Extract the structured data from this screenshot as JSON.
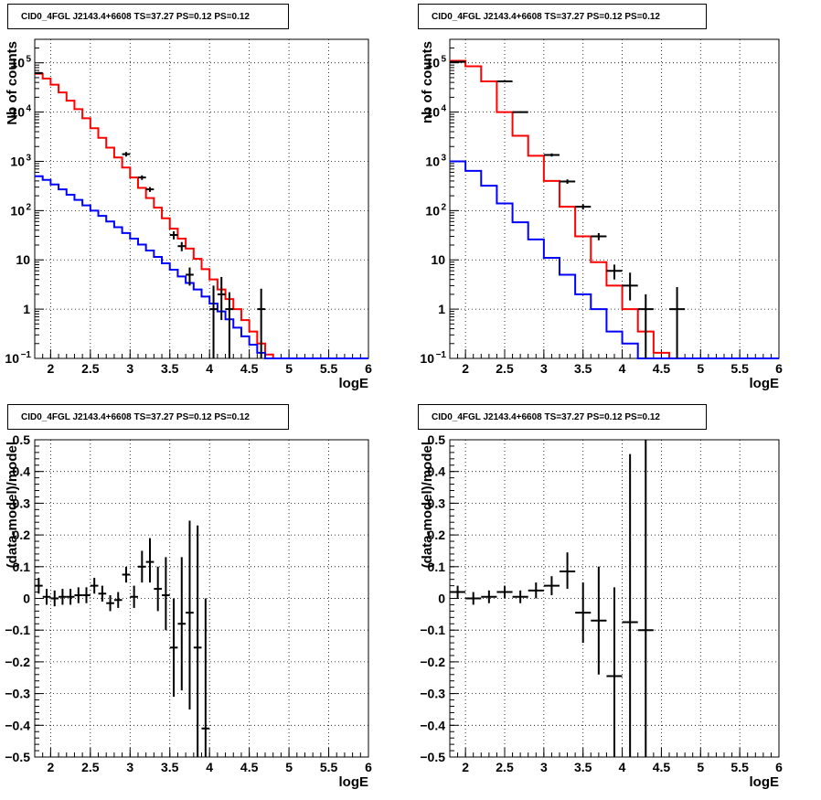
{
  "chart_data": [
    {
      "type": "line",
      "title": "CID0_4FGL J2143.4+6608 TS=37.27 PS=0.12 PS=0.12",
      "xlabel": "logE",
      "ylabel": "Nb of counts",
      "yscale": "log",
      "xlim": [
        1.8,
        6
      ],
      "ylim": [
        0.1,
        300000
      ],
      "grid": true,
      "xticks": [
        "2",
        "2.5",
        "3",
        "3.5",
        "4",
        "4.5",
        "5",
        "5.5",
        "6"
      ],
      "yticks": [
        {
          "value": 0.1,
          "label": "10",
          "sup": "−1"
        },
        {
          "value": 1,
          "label": "1",
          "sup": ""
        },
        {
          "value": 10,
          "label": "10",
          "sup": ""
        },
        {
          "value": 100,
          "label": "10",
          "sup": "2"
        },
        {
          "value": 1000,
          "label": "10",
          "sup": "3"
        },
        {
          "value": 10000,
          "label": "10",
          "sup": "4"
        },
        {
          "value": 100000,
          "label": "10",
          "sup": "5"
        }
      ],
      "bin_edges": [
        1.8,
        1.9,
        2.0,
        2.1,
        2.2,
        2.3,
        2.4,
        2.5,
        2.6,
        2.7,
        2.8,
        2.9,
        3.0,
        3.1,
        3.2,
        3.3,
        3.4,
        3.5,
        3.6,
        3.7,
        3.8,
        3.9,
        4.0,
        4.1,
        4.2,
        4.3,
        4.4,
        4.5,
        4.6,
        4.7,
        4.8,
        4.9,
        5.0,
        5.1,
        5.2,
        5.3,
        5.4,
        5.5,
        5.6,
        5.7,
        5.8,
        5.9,
        6.0
      ],
      "series": [
        {
          "color": "#ff0000",
          "values": [
            60000,
            48000,
            36000,
            25000,
            17000,
            11500,
            7500,
            4700,
            3000,
            1900,
            1200,
            750,
            470,
            290,
            180,
            115,
            70,
            43,
            27,
            17,
            10.5,
            6.5,
            4,
            2.5,
            1.6,
            1,
            0.6,
            0.35,
            0.2,
            0.12,
            0.1,
            0.1,
            0.1,
            0.1,
            0.1,
            0.1,
            0.1,
            0.1,
            0.1,
            0.1,
            0.1,
            0.1
          ]
        },
        {
          "color": "#0000ff",
          "values": [
            500,
            420,
            340,
            270,
            210,
            165,
            128,
            100,
            78,
            60,
            46,
            35,
            27,
            20.5,
            15.5,
            11.5,
            8.5,
            6.3,
            4.6,
            3.4,
            2.5,
            1.8,
            1.3,
            0.9,
            0.62,
            0.42,
            0.28,
            0.19,
            0.13,
            0.1,
            0.1,
            0.1,
            0.1,
            0.1,
            0.1,
            0.1,
            0.1,
            0.1,
            0.1,
            0.1,
            0.1,
            0.1
          ]
        }
      ],
      "points": [
        {
          "x": 1.85,
          "y": 62000,
          "xerr": 0.05,
          "ylo": 59000,
          "yhi": 65000
        },
        {
          "x": 2.95,
          "y": 1400,
          "xerr": 0.05,
          "ylo": 1250,
          "yhi": 1550
        },
        {
          "x": 3.15,
          "y": 470,
          "xerr": 0.05,
          "ylo": 420,
          "yhi": 520
        },
        {
          "x": 3.25,
          "y": 270,
          "xerr": 0.05,
          "ylo": 240,
          "yhi": 300
        },
        {
          "x": 3.55,
          "y": 32,
          "xerr": 0.05,
          "ylo": 26,
          "yhi": 38
        },
        {
          "x": 3.65,
          "y": 19,
          "xerr": 0.05,
          "ylo": 15,
          "yhi": 23
        },
        {
          "x": 3.75,
          "y": 5,
          "xerr": 0.05,
          "ylo": 3,
          "yhi": 7
        },
        {
          "x": 4.05,
          "y": 1,
          "xerr": 0.05,
          "ylo": 0.1,
          "yhi": 3
        },
        {
          "x": 4.15,
          "y": 2,
          "xerr": 0.05,
          "ylo": 0.6,
          "yhi": 4.5
        },
        {
          "x": 4.25,
          "y": 1,
          "xerr": 0.05,
          "ylo": 0.1,
          "yhi": 2.2
        },
        {
          "x": 4.65,
          "y": 1,
          "xerr": 0.05,
          "ylo": 0.1,
          "yhi": 2.6
        }
      ]
    },
    {
      "type": "line",
      "title": "CID0_4FGL J2143.4+6608 TS=37.27 PS=0.12 PS=0.12",
      "xlabel": "logE",
      "ylabel": "nb of counts",
      "yscale": "log",
      "xlim": [
        1.8,
        6
      ],
      "ylim": [
        0.1,
        300000
      ],
      "grid": true,
      "xticks": [
        "2",
        "2.5",
        "3",
        "3.5",
        "4",
        "4.5",
        "5",
        "5.5",
        "6"
      ],
      "yticks": [
        {
          "value": 0.1,
          "label": "10",
          "sup": "−1"
        },
        {
          "value": 1,
          "label": "1",
          "sup": ""
        },
        {
          "value": 10,
          "label": "10",
          "sup": ""
        },
        {
          "value": 100,
          "label": "10",
          "sup": "2"
        },
        {
          "value": 1000,
          "label": "10",
          "sup": "3"
        },
        {
          "value": 10000,
          "label": "10",
          "sup": "4"
        },
        {
          "value": 100000,
          "label": "10",
          "sup": "5"
        }
      ],
      "bin_edges": [
        1.8,
        2.0,
        2.2,
        2.4,
        2.6,
        2.8,
        3.0,
        3.2,
        3.4,
        3.6,
        3.8,
        4.0,
        4.2,
        4.4,
        4.6,
        4.8,
        5.0,
        5.2,
        5.4,
        5.6,
        5.8,
        6.0
      ],
      "series": [
        {
          "color": "#ff0000",
          "values": [
            110000,
            85000,
            42000,
            10000,
            3300,
            1300,
            400,
            120,
            30,
            9,
            3,
            1,
            0.35,
            0.13,
            0.1,
            0.1,
            0.1,
            0.1,
            0.1,
            0.1,
            0.1
          ]
        },
        {
          "color": "#0000ff",
          "values": [
            1000,
            640,
            320,
            140,
            58,
            26,
            11,
            5,
            2,
            1,
            0.35,
            0.2,
            0.1,
            0.1,
            0.1,
            0.1,
            0.1,
            0.1,
            0.1,
            0.1,
            0.1
          ]
        }
      ],
      "points": [
        {
          "x": 1.9,
          "y": 105000,
          "xerr": 0.1,
          "ylo": 101000,
          "yhi": 109000
        },
        {
          "x": 2.5,
          "y": 42000,
          "xerr": 0.1,
          "ylo": 40500,
          "yhi": 43500
        },
        {
          "x": 2.7,
          "y": 10000,
          "xerr": 0.1,
          "ylo": 9600,
          "yhi": 10400
        },
        {
          "x": 3.1,
          "y": 1350,
          "xerr": 0.1,
          "ylo": 1250,
          "yhi": 1450
        },
        {
          "x": 3.3,
          "y": 390,
          "xerr": 0.1,
          "ylo": 350,
          "yhi": 430
        },
        {
          "x": 3.5,
          "y": 120,
          "xerr": 0.1,
          "ylo": 105,
          "yhi": 135
        },
        {
          "x": 3.7,
          "y": 30,
          "xerr": 0.1,
          "ylo": 25,
          "yhi": 35
        },
        {
          "x": 3.9,
          "y": 6,
          "xerr": 0.1,
          "ylo": 4,
          "yhi": 8
        },
        {
          "x": 4.1,
          "y": 3,
          "xerr": 0.1,
          "ylo": 1.5,
          "yhi": 5.5
        },
        {
          "x": 4.3,
          "y": 1,
          "xerr": 0.1,
          "ylo": 0.1,
          "yhi": 2
        },
        {
          "x": 4.7,
          "y": 1,
          "xerr": 0.1,
          "ylo": 0.1,
          "yhi": 2.8
        }
      ]
    },
    {
      "type": "scatter",
      "title": "CID0_4FGL J2143.4+6608 TS=37.27 PS=0.12 PS=0.12",
      "xlabel": "logE",
      "ylabel": "(data-model)/model",
      "yscale": "linear",
      "xlim": [
        1.8,
        6
      ],
      "ylim": [
        -0.5,
        0.5
      ],
      "grid": true,
      "xticks": [
        "2",
        "2.5",
        "3",
        "3.5",
        "4",
        "4.5",
        "5",
        "5.5",
        "6"
      ],
      "yticks": [
        {
          "value": -0.5,
          "label": "−0.5"
        },
        {
          "value": -0.4,
          "label": "−0.4"
        },
        {
          "value": -0.3,
          "label": "−0.3"
        },
        {
          "value": -0.2,
          "label": "−0.2"
        },
        {
          "value": -0.1,
          "label": "−0.1"
        },
        {
          "value": 0,
          "label": "0"
        },
        {
          "value": 0.1,
          "label": "0.1"
        },
        {
          "value": 0.2,
          "label": "0.2"
        },
        {
          "value": 0.3,
          "label": "0.3"
        },
        {
          "value": 0.4,
          "label": "0.4"
        },
        {
          "value": 0.5,
          "label": "0.5"
        }
      ],
      "points": [
        {
          "x": 1.85,
          "y": 0.04,
          "xerr": 0.05,
          "ylo": 0.015,
          "yhi": 0.065
        },
        {
          "x": 1.95,
          "y": 0.005,
          "xerr": 0.05,
          "ylo": -0.02,
          "yhi": 0.03
        },
        {
          "x": 2.05,
          "y": 0.0,
          "xerr": 0.05,
          "ylo": -0.025,
          "yhi": 0.025
        },
        {
          "x": 2.15,
          "y": 0.005,
          "xerr": 0.05,
          "ylo": -0.02,
          "yhi": 0.03
        },
        {
          "x": 2.25,
          "y": 0.005,
          "xerr": 0.05,
          "ylo": -0.02,
          "yhi": 0.03
        },
        {
          "x": 2.35,
          "y": 0.01,
          "xerr": 0.05,
          "ylo": -0.015,
          "yhi": 0.035
        },
        {
          "x": 2.45,
          "y": 0.01,
          "xerr": 0.05,
          "ylo": -0.015,
          "yhi": 0.035
        },
        {
          "x": 2.55,
          "y": 0.04,
          "xerr": 0.05,
          "ylo": 0.015,
          "yhi": 0.065
        },
        {
          "x": 2.65,
          "y": 0.015,
          "xerr": 0.05,
          "ylo": -0.01,
          "yhi": 0.04
        },
        {
          "x": 2.75,
          "y": -0.015,
          "xerr": 0.05,
          "ylo": -0.04,
          "yhi": 0.01
        },
        {
          "x": 2.85,
          "y": -0.005,
          "xerr": 0.05,
          "ylo": -0.03,
          "yhi": 0.02
        },
        {
          "x": 2.95,
          "y": 0.075,
          "xerr": 0.05,
          "ylo": 0.05,
          "yhi": 0.1
        },
        {
          "x": 3.05,
          "y": 0.005,
          "xerr": 0.05,
          "ylo": -0.03,
          "yhi": 0.04
        },
        {
          "x": 3.15,
          "y": 0.1,
          "xerr": 0.05,
          "ylo": 0.05,
          "yhi": 0.15
        },
        {
          "x": 3.25,
          "y": 0.115,
          "xerr": 0.05,
          "ylo": 0.05,
          "yhi": 0.19
        },
        {
          "x": 3.35,
          "y": 0.03,
          "xerr": 0.05,
          "ylo": -0.04,
          "yhi": 0.1
        },
        {
          "x": 3.45,
          "y": 0.01,
          "xerr": 0.05,
          "ylo": -0.1,
          "yhi": 0.13
        },
        {
          "x": 3.55,
          "y": -0.155,
          "xerr": 0.05,
          "ylo": -0.31,
          "yhi": 0.0
        },
        {
          "x": 3.65,
          "y": -0.08,
          "xerr": 0.05,
          "ylo": -0.29,
          "yhi": 0.13
        },
        {
          "x": 3.75,
          "y": -0.045,
          "xerr": 0.05,
          "ylo": -0.35,
          "yhi": 0.245
        },
        {
          "x": 3.85,
          "y": -0.155,
          "xerr": 0.05,
          "ylo": -0.5,
          "yhi": 0.23
        },
        {
          "x": 3.95,
          "y": -0.41,
          "xerr": 0.05,
          "ylo": -0.5,
          "yhi": 0.0
        }
      ]
    },
    {
      "type": "scatter",
      "title": "CID0_4FGL J2143.4+6608 TS=37.27 PS=0.12 PS=0.12",
      "xlabel": "logE",
      "ylabel": "(data-model)/model",
      "yscale": "linear",
      "xlim": [
        1.8,
        6
      ],
      "ylim": [
        -0.5,
        0.5
      ],
      "grid": true,
      "xticks": [
        "2",
        "2.5",
        "3",
        "3.5",
        "4",
        "4.5",
        "5",
        "5.5",
        "6"
      ],
      "yticks": [
        {
          "value": -0.5,
          "label": "−0.5"
        },
        {
          "value": -0.4,
          "label": "−0.4"
        },
        {
          "value": -0.3,
          "label": "−0.3"
        },
        {
          "value": -0.2,
          "label": "−0.2"
        },
        {
          "value": -0.1,
          "label": "−0.1"
        },
        {
          "value": 0,
          "label": "0"
        },
        {
          "value": 0.1,
          "label": "0.1"
        },
        {
          "value": 0.2,
          "label": "0.2"
        },
        {
          "value": 0.3,
          "label": "0.3"
        },
        {
          "value": 0.4,
          "label": "0.4"
        },
        {
          "value": 0.5,
          "label": "0.5"
        }
      ],
      "points": [
        {
          "x": 1.9,
          "y": 0.02,
          "xerr": 0.1,
          "ylo": 0.0,
          "yhi": 0.04
        },
        {
          "x": 2.1,
          "y": 0.0,
          "xerr": 0.1,
          "ylo": -0.02,
          "yhi": 0.02
        },
        {
          "x": 2.3,
          "y": 0.005,
          "xerr": 0.1,
          "ylo": -0.015,
          "yhi": 0.025
        },
        {
          "x": 2.5,
          "y": 0.02,
          "xerr": 0.1,
          "ylo": 0.0,
          "yhi": 0.04
        },
        {
          "x": 2.7,
          "y": 0.005,
          "xerr": 0.1,
          "ylo": -0.015,
          "yhi": 0.025
        },
        {
          "x": 2.9,
          "y": 0.025,
          "xerr": 0.1,
          "ylo": 0.0,
          "yhi": 0.05
        },
        {
          "x": 3.1,
          "y": 0.04,
          "xerr": 0.1,
          "ylo": 0.01,
          "yhi": 0.07
        },
        {
          "x": 3.3,
          "y": 0.085,
          "xerr": 0.1,
          "ylo": 0.03,
          "yhi": 0.145
        },
        {
          "x": 3.5,
          "y": -0.045,
          "xerr": 0.1,
          "ylo": -0.14,
          "yhi": 0.05
        },
        {
          "x": 3.7,
          "y": -0.07,
          "xerr": 0.1,
          "ylo": -0.24,
          "yhi": 0.1
        },
        {
          "x": 3.9,
          "y": -0.245,
          "xerr": 0.1,
          "ylo": -0.5,
          "yhi": 0.035
        },
        {
          "x": 4.1,
          "y": -0.075,
          "xerr": 0.1,
          "ylo": -0.5,
          "yhi": 0.455
        },
        {
          "x": 4.3,
          "y": -0.1,
          "xerr": 0.1,
          "ylo": -0.5,
          "yhi": 0.5
        }
      ]
    }
  ]
}
